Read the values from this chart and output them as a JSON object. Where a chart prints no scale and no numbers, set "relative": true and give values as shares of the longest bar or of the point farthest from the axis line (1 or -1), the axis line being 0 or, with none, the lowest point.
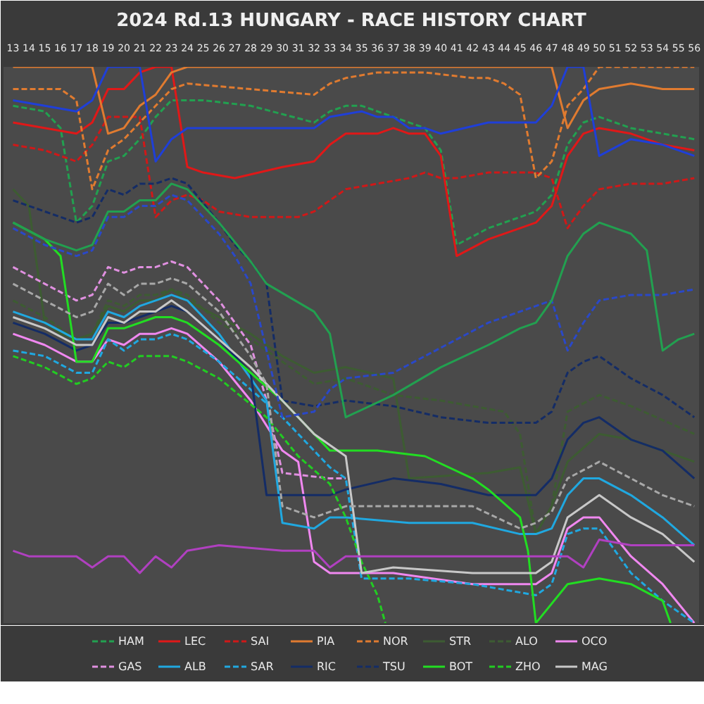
{
  "chart_data": {
    "type": "line",
    "title": "2024 Rd.13 HUNGARY - RACE HISTORY CHART",
    "relative": true,
    "legend": "bottom",
    "tick_labels": "x",
    "xlim": [
      12.4,
      56.3
    ],
    "xticks": [
      13,
      14,
      15,
      16,
      17,
      18,
      19,
      20,
      21,
      22,
      23,
      24,
      25,
      26,
      27,
      28,
      29,
      30,
      31,
      32,
      33,
      34,
      35,
      36,
      37,
      38,
      39,
      40,
      41,
      42,
      43,
      44,
      45,
      46,
      47,
      48,
      49,
      50,
      51,
      52,
      53,
      54,
      55,
      56
    ],
    "series": [
      {
        "name": "HAM",
        "color": "#22a050",
        "line_style": "dashed",
        "x": [
          13,
          15,
          16,
          17,
          18,
          19,
          20,
          21,
          22,
          23,
          24,
          25,
          28,
          32,
          33,
          34,
          35,
          37,
          39,
          40,
          41,
          43,
          46,
          47,
          48,
          49,
          50,
          52,
          54,
          56
        ],
        "values": [
          0.93,
          0.92,
          0.89,
          0.72,
          0.75,
          0.83,
          0.84,
          0.87,
          0.91,
          0.94,
          0.94,
          0.94,
          0.93,
          0.9,
          0.92,
          0.93,
          0.93,
          0.91,
          0.89,
          0.85,
          0.68,
          0.71,
          0.74,
          0.77,
          0.86,
          0.9,
          0.91,
          0.89,
          0.88,
          0.87
        ]
      },
      {
        "name": "LEC",
        "color": "#e01818",
        "line_style": "solid",
        "x": [
          13,
          17,
          18,
          19,
          20,
          21,
          22,
          23,
          24,
          25,
          27,
          30,
          32,
          33,
          34,
          35,
          36,
          37,
          38,
          39,
          40,
          41,
          43,
          45,
          46,
          47,
          48,
          49,
          50,
          52,
          54,
          56
        ],
        "values": [
          0.9,
          0.88,
          0.9,
          0.96,
          0.96,
          0.99,
          1.0,
          1.0,
          0.82,
          0.81,
          0.8,
          0.82,
          0.83,
          0.86,
          0.88,
          0.88,
          0.88,
          0.89,
          0.88,
          0.88,
          0.84,
          0.66,
          0.69,
          0.71,
          0.72,
          0.75,
          0.84,
          0.88,
          0.89,
          0.88,
          0.86,
          0.85
        ]
      },
      {
        "name": "SAI",
        "color": "#d01818",
        "line_style": "dashed",
        "x": [
          13,
          15,
          17,
          18,
          19,
          21,
          22,
          23,
          24,
          25,
          26,
          28,
          31,
          32,
          33,
          34,
          36,
          38,
          39,
          40,
          41,
          43,
          46,
          47,
          48,
          49,
          50,
          52,
          54,
          56
        ],
        "values": [
          0.86,
          0.85,
          0.83,
          0.86,
          0.91,
          0.91,
          0.73,
          0.76,
          0.77,
          0.76,
          0.74,
          0.73,
          0.73,
          0.74,
          0.76,
          0.78,
          0.79,
          0.8,
          0.81,
          0.8,
          0.8,
          0.81,
          0.81,
          0.8,
          0.71,
          0.75,
          0.78,
          0.79,
          0.79,
          0.8
        ]
      },
      {
        "name": "PIA",
        "color": "#e07b30",
        "line_style": "solid",
        "x": [
          13,
          18,
          19,
          20,
          21,
          22,
          23,
          24,
          47,
          48,
          49,
          50,
          52,
          54,
          56
        ],
        "values": [
          1.0,
          1.0,
          0.88,
          0.89,
          0.93,
          0.95,
          0.99,
          1.0,
          1.0,
          0.89,
          0.94,
          0.96,
          0.97,
          0.96,
          0.96
        ]
      },
      {
        "name": "NOR",
        "color": "#e07b30",
        "line_style": "dashed",
        "x": [
          13,
          16,
          17,
          18,
          19,
          20,
          21,
          22,
          23,
          24,
          28,
          32,
          33,
          34,
          36,
          39,
          42,
          43,
          44,
          45,
          46,
          47,
          48,
          49,
          50,
          56
        ],
        "values": [
          0.96,
          0.96,
          0.94,
          0.78,
          0.85,
          0.87,
          0.9,
          0.93,
          0.96,
          0.97,
          0.96,
          0.95,
          0.97,
          0.98,
          0.99,
          0.99,
          0.98,
          0.98,
          0.97,
          0.95,
          0.8,
          0.83,
          0.93,
          0.96,
          1.0,
          1.0
        ]
      },
      {
        "name": "STR",
        "color": "#3d5c32",
        "line_style": "solid",
        "x": [
          13,
          14,
          15,
          16,
          17,
          18,
          19,
          20,
          21,
          22,
          23,
          24,
          26,
          28,
          30,
          32,
          34,
          37,
          38,
          43,
          45,
          46,
          47,
          48,
          50,
          52,
          56
        ],
        "values": [
          0.78,
          0.75,
          0.54,
          0.52,
          0.51,
          0.52,
          0.57,
          0.56,
          0.58,
          0.58,
          0.6,
          0.58,
          0.55,
          0.52,
          0.48,
          0.45,
          0.46,
          0.44,
          0.26,
          0.27,
          0.28,
          0.16,
          0.21,
          0.29,
          0.34,
          0.33,
          0.29
        ]
      },
      {
        "name": "ALO",
        "color": "#3d5c32",
        "line_style": "dashed",
        "x": [
          13,
          15,
          17,
          18,
          19,
          20,
          21,
          22,
          23,
          24,
          26,
          28,
          30,
          32,
          34,
          37,
          40,
          44,
          45,
          46,
          47,
          48,
          50,
          52,
          56
        ],
        "values": [
          0.58,
          0.55,
          0.51,
          0.52,
          0.58,
          0.57,
          0.59,
          0.59,
          0.6,
          0.59,
          0.54,
          0.51,
          0.47,
          0.43,
          0.44,
          0.41,
          0.4,
          0.38,
          0.34,
          0.16,
          0.21,
          0.38,
          0.41,
          0.39,
          0.34
        ]
      },
      {
        "name": "OCO",
        "color": "#f088f0",
        "line_style": "solid",
        "x": [
          13,
          15,
          17,
          18,
          19,
          20,
          21,
          22,
          23,
          24,
          26,
          28,
          30,
          31,
          32,
          33,
          37,
          42,
          46,
          47,
          48,
          49,
          50,
          52,
          54,
          56
        ],
        "values": [
          0.52,
          0.5,
          0.47,
          0.47,
          0.51,
          0.5,
          0.52,
          0.52,
          0.53,
          0.52,
          0.47,
          0.4,
          0.31,
          0.29,
          0.11,
          0.09,
          0.09,
          0.07,
          0.07,
          0.09,
          0.17,
          0.19,
          0.19,
          0.12,
          0.07,
          0.0
        ]
      },
      {
        "name": "GAS",
        "color": "#e090e0",
        "line_style": "dashed",
        "x": [
          13,
          15,
          17,
          18,
          19,
          20,
          21,
          22,
          23,
          24,
          26,
          27,
          28,
          29,
          30,
          33,
          34
        ],
        "values": [
          0.64,
          0.61,
          0.58,
          0.59,
          0.64,
          0.63,
          0.64,
          0.64,
          0.65,
          0.64,
          0.58,
          0.54,
          0.5,
          0.4,
          0.27,
          0.26,
          0.26
        ]
      },
      {
        "name": "ALB",
        "color": "#20a8e0",
        "line_style": "solid",
        "x": [
          13,
          15,
          17,
          18,
          19,
          20,
          21,
          22,
          23,
          24,
          26,
          28,
          29,
          30,
          32,
          33,
          34,
          38,
          42,
          45,
          46,
          47,
          48,
          49,
          50,
          52,
          54,
          56
        ],
        "values": [
          0.56,
          0.54,
          0.51,
          0.51,
          0.56,
          0.55,
          0.57,
          0.58,
          0.59,
          0.58,
          0.52,
          0.44,
          0.4,
          0.18,
          0.17,
          0.19,
          0.19,
          0.18,
          0.18,
          0.16,
          0.16,
          0.17,
          0.23,
          0.26,
          0.26,
          0.23,
          0.19,
          0.14
        ]
      },
      {
        "name": "SAR",
        "color": "#20a8e0",
        "line_style": "dashed",
        "x": [
          13,
          15,
          17,
          18,
          19,
          20,
          21,
          22,
          23,
          24,
          26,
          30,
          33,
          34,
          35,
          38,
          42,
          46,
          47,
          48,
          49,
          50,
          52,
          54,
          56
        ],
        "values": [
          0.49,
          0.48,
          0.45,
          0.45,
          0.51,
          0.49,
          0.51,
          0.51,
          0.52,
          0.51,
          0.47,
          0.37,
          0.28,
          0.26,
          0.08,
          0.08,
          0.07,
          0.05,
          0.07,
          0.16,
          0.17,
          0.17,
          0.09,
          0.04,
          0.0
        ]
      },
      {
        "name": "RIC",
        "color": "#142c66",
        "line_style": "solid",
        "x": [
          13,
          15,
          17,
          18,
          19,
          20,
          21,
          22,
          23,
          24,
          26,
          28,
          29,
          33,
          34,
          37,
          40,
          43,
          46,
          47,
          48,
          49,
          50,
          52,
          54,
          56
        ],
        "values": [
          0.54,
          0.52,
          0.49,
          0.5,
          0.54,
          0.54,
          0.55,
          0.56,
          0.57,
          0.56,
          0.51,
          0.45,
          0.23,
          0.23,
          0.24,
          0.26,
          0.25,
          0.23,
          0.23,
          0.26,
          0.33,
          0.36,
          0.37,
          0.33,
          0.31,
          0.26
        ]
      },
      {
        "name": "TSU",
        "color": "#142c66",
        "line_style": "dashed",
        "x": [
          13,
          15,
          17,
          18,
          19,
          20,
          21,
          22,
          23,
          24,
          26,
          27,
          28,
          29,
          30,
          32,
          34,
          37,
          40,
          43,
          45,
          46,
          47,
          48,
          49,
          50,
          52,
          54,
          56
        ],
        "values": [
          0.76,
          0.74,
          0.72,
          0.73,
          0.78,
          0.77,
          0.79,
          0.79,
          0.8,
          0.79,
          0.72,
          0.68,
          0.65,
          0.61,
          0.4,
          0.39,
          0.4,
          0.39,
          0.37,
          0.36,
          0.36,
          0.36,
          0.38,
          0.45,
          0.47,
          0.48,
          0.44,
          0.41,
          0.37
        ]
      },
      {
        "name": "BOT",
        "color": "#22dd22",
        "line_style": "solid",
        "x": [
          13,
          15,
          16,
          17,
          18,
          19,
          20,
          22,
          23,
          24,
          26,
          28,
          30,
          33,
          34,
          36,
          39,
          42,
          43,
          45,
          45.5,
          46,
          48,
          50,
          52,
          54,
          54.5
        ],
        "values": [
          0.72,
          0.69,
          0.66,
          0.47,
          0.47,
          0.53,
          0.53,
          0.55,
          0.55,
          0.54,
          0.5,
          0.45,
          0.4,
          0.31,
          0.31,
          0.31,
          0.3,
          0.26,
          0.24,
          0.19,
          0.13,
          0.0,
          0.07,
          0.08,
          0.07,
          0.04,
          0.0
        ]
      },
      {
        "name": "ZHO",
        "color": "#22cc22",
        "line_style": "dashed",
        "x": [
          13,
          15,
          17,
          18,
          19,
          20,
          21,
          22,
          23,
          24,
          26,
          29,
          31,
          33,
          34,
          35,
          36,
          36.5
        ],
        "values": [
          0.48,
          0.46,
          0.43,
          0.44,
          0.47,
          0.46,
          0.48,
          0.48,
          0.48,
          0.47,
          0.44,
          0.37,
          0.3,
          0.25,
          0.19,
          0.11,
          0.05,
          0.0
        ]
      },
      {
        "name": "MAG",
        "color": "#c8c8c8",
        "line_style": "solid",
        "x": [
          13,
          15,
          17,
          18,
          19,
          20,
          21,
          22,
          23,
          24,
          26,
          28,
          30,
          32,
          33,
          34,
          35,
          37,
          42,
          46,
          47,
          48,
          50,
          52,
          54,
          56
        ],
        "values": [
          0.55,
          0.53,
          0.5,
          0.5,
          0.55,
          0.54,
          0.56,
          0.56,
          0.58,
          0.56,
          0.51,
          0.46,
          0.4,
          0.34,
          0.32,
          0.3,
          0.09,
          0.1,
          0.09,
          0.09,
          0.11,
          0.19,
          0.23,
          0.19,
          0.16,
          0.11
        ]
      },
      {
        "color": "#1f3fd8",
        "line_style": "solid",
        "x": [
          13,
          15,
          17,
          18,
          19,
          21,
          22,
          23,
          24,
          32,
          33,
          35,
          36,
          37,
          38,
          39,
          40,
          43,
          46,
          47,
          48,
          49,
          50,
          52,
          54,
          56
        ],
        "values": [
          0.94,
          0.93,
          0.92,
          0.94,
          1.0,
          1.0,
          0.83,
          0.87,
          0.89,
          0.89,
          0.91,
          0.92,
          0.91,
          0.91,
          0.89,
          0.89,
          0.88,
          0.9,
          0.9,
          0.93,
          1.0,
          1.0,
          0.84,
          0.87,
          0.86,
          0.84
        ]
      },
      {
        "color": "#2a48c8",
        "line_style": "dashed",
        "x": [
          13,
          15,
          17,
          18,
          19,
          20,
          21,
          22,
          23,
          24,
          26,
          27,
          28,
          29,
          30,
          32,
          33,
          34,
          37,
          39,
          41,
          43,
          46,
          47,
          48,
          49,
          50,
          52,
          54,
          56
        ],
        "values": [
          0.71,
          0.68,
          0.66,
          0.67,
          0.73,
          0.73,
          0.75,
          0.75,
          0.77,
          0.76,
          0.7,
          0.66,
          0.61,
          0.49,
          0.37,
          0.38,
          0.42,
          0.44,
          0.45,
          0.48,
          0.51,
          0.54,
          0.57,
          0.58,
          0.49,
          0.54,
          0.58,
          0.59,
          0.59,
          0.6
        ]
      },
      {
        "color": "#22a050",
        "line_style": "solid",
        "x": [
          13,
          15,
          17,
          18,
          19,
          20,
          21,
          22,
          23,
          24,
          26,
          28,
          29,
          32,
          33,
          34,
          37,
          40,
          43,
          45,
          46,
          47,
          48,
          49,
          50,
          52,
          53,
          54,
          55,
          56
        ],
        "values": [
          0.72,
          0.69,
          0.67,
          0.68,
          0.74,
          0.74,
          0.76,
          0.76,
          0.79,
          0.78,
          0.72,
          0.65,
          0.61,
          0.56,
          0.52,
          0.37,
          0.41,
          0.46,
          0.5,
          0.53,
          0.54,
          0.58,
          0.66,
          0.7,
          0.72,
          0.7,
          0.67,
          0.49,
          0.51,
          0.52
        ]
      },
      {
        "color": "#a8a8a8",
        "line_style": "dashed",
        "x": [
          13,
          15,
          17,
          18,
          19,
          20,
          21,
          22,
          23,
          24,
          26,
          28,
          29,
          30,
          32,
          34,
          37,
          42,
          45,
          46,
          47,
          48,
          50,
          52,
          54,
          56
        ],
        "values": [
          0.61,
          0.58,
          0.55,
          0.56,
          0.61,
          0.59,
          0.61,
          0.61,
          0.62,
          0.61,
          0.56,
          0.48,
          0.43,
          0.21,
          0.19,
          0.21,
          0.21,
          0.21,
          0.17,
          0.18,
          0.2,
          0.26,
          0.29,
          0.26,
          0.23,
          0.21
        ]
      },
      {
        "color": "#b040c0",
        "line_style": "solid",
        "x": [
          13,
          14,
          17,
          18,
          19,
          20,
          21,
          22,
          23,
          24,
          26,
          30,
          32,
          33,
          34,
          41,
          46,
          48,
          49,
          50,
          52,
          56
        ],
        "values": [
          0.13,
          0.12,
          0.12,
          0.1,
          0.12,
          0.12,
          0.09,
          0.12,
          0.1,
          0.13,
          0.14,
          0.13,
          0.13,
          0.1,
          0.12,
          0.12,
          0.12,
          0.12,
          0.1,
          0.15,
          0.14,
          0.14
        ]
      }
    ]
  }
}
